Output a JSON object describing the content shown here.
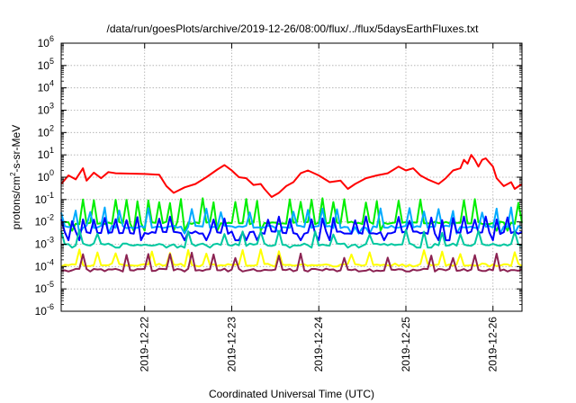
{
  "chart_data": {
    "type": "line",
    "title": "/data/run/goesPlots/archive/2019-12-26/08:00/flux/../flux/5daysEarthFluxes.txt",
    "xlabel": "Coordinated Universal Time (UTC)",
    "ylabel_parts": {
      "pre": "protons/cm",
      "sup": "2",
      "post": "-s-sr-MeV"
    },
    "y_scale": "log",
    "ylim": [
      1e-06,
      1000000.0
    ],
    "y_ticks": [
      {
        "base": "10",
        "exp": "-6"
      },
      {
        "base": "10",
        "exp": "-5"
      },
      {
        "base": "10",
        "exp": "-4"
      },
      {
        "base": "10",
        "exp": "-3"
      },
      {
        "base": "10",
        "exp": "-2"
      },
      {
        "base": "10",
        "exp": "-1"
      },
      {
        "base": "10",
        "exp": "0"
      },
      {
        "base": "10",
        "exp": "1"
      },
      {
        "base": "10",
        "exp": "2"
      },
      {
        "base": "10",
        "exp": "3"
      },
      {
        "base": "10",
        "exp": "4"
      },
      {
        "base": "10",
        "exp": "5"
      },
      {
        "base": "10",
        "exp": "6"
      }
    ],
    "xlim": [
      "2019-12-21T01:00",
      "2019-12-26T08:00"
    ],
    "x_ticks": [
      "2019-12-22",
      "2019-12-23",
      "2019-12-24",
      "2019-12-25",
      "2019-12-26"
    ],
    "grid": true,
    "series": [
      {
        "color": "#ff0000",
        "values": [
          [
            "2019-12-21T01:00",
            0.5
          ],
          [
            "2019-12-21T03:00",
            1.2
          ],
          [
            "2019-12-21T05:00",
            0.8
          ],
          [
            "2019-12-21T07:00",
            2.5
          ],
          [
            "2019-12-21T08:00",
            0.7
          ],
          [
            "2019-12-21T10:00",
            1.6
          ],
          [
            "2019-12-21T12:00",
            0.9
          ],
          [
            "2019-12-21T14:00",
            1.7
          ],
          [
            "2019-12-21T16:00",
            1.5
          ],
          [
            "2019-12-22T00:00",
            1.4
          ],
          [
            "2019-12-22T04:00",
            1.3
          ],
          [
            "2019-12-22T06:00",
            0.4
          ],
          [
            "2019-12-22T08:00",
            0.2
          ],
          [
            "2019-12-22T11:00",
            0.35
          ],
          [
            "2019-12-22T14:00",
            0.5
          ],
          [
            "2019-12-22T17:00",
            1.0
          ],
          [
            "2019-12-22T20:00",
            2.2
          ],
          [
            "2019-12-22T22:00",
            3.5
          ],
          [
            "2019-12-23T00:00",
            2.0
          ],
          [
            "2019-12-23T02:00",
            1.0
          ],
          [
            "2019-12-23T04:00",
            0.9
          ],
          [
            "2019-12-23T06:00",
            0.45
          ],
          [
            "2019-12-23T08:00",
            0.5
          ],
          [
            "2019-12-23T09:00",
            0.3
          ],
          [
            "2019-12-23T11:00",
            0.13
          ],
          [
            "2019-12-23T13:00",
            0.2
          ],
          [
            "2019-12-23T15:00",
            0.4
          ],
          [
            "2019-12-23T17:00",
            0.6
          ],
          [
            "2019-12-23T19:00",
            1.5
          ],
          [
            "2019-12-23T21:00",
            2.0
          ],
          [
            "2019-12-24T00:00",
            1.2
          ],
          [
            "2019-12-24T03:00",
            0.6
          ],
          [
            "2019-12-24T06:00",
            0.7
          ],
          [
            "2019-12-24T08:00",
            0.3
          ],
          [
            "2019-12-24T10:00",
            0.5
          ],
          [
            "2019-12-24T13:00",
            0.9
          ],
          [
            "2019-12-24T16:00",
            1.2
          ],
          [
            "2019-12-24T19:00",
            1.5
          ],
          [
            "2019-12-24T22:00",
            3.0
          ],
          [
            "2019-12-25T00:00",
            2.0
          ],
          [
            "2019-12-25T02:00",
            2.5
          ],
          [
            "2019-12-25T04:00",
            1.2
          ],
          [
            "2019-12-25T06:00",
            0.8
          ],
          [
            "2019-12-25T09:00",
            0.5
          ],
          [
            "2019-12-25T11:00",
            0.9
          ],
          [
            "2019-12-25T13:00",
            2.0
          ],
          [
            "2019-12-25T15:00",
            2.5
          ],
          [
            "2019-12-25T16:00",
            6.0
          ],
          [
            "2019-12-25T17:00",
            4.0
          ],
          [
            "2019-12-25T18:00",
            10.0
          ],
          [
            "2019-12-25T19:00",
            6.0
          ],
          [
            "2019-12-25T20:00",
            3.0
          ],
          [
            "2019-12-25T21:00",
            6.0
          ],
          [
            "2019-12-25T22:00",
            7.0
          ],
          [
            "2019-12-26T00:00",
            3.0
          ],
          [
            "2019-12-26T01:00",
            0.9
          ],
          [
            "2019-12-26T02:00",
            0.6
          ],
          [
            "2019-12-26T03:00",
            0.4
          ],
          [
            "2019-12-26T05:00",
            0.6
          ],
          [
            "2019-12-26T06:00",
            0.3
          ],
          [
            "2019-12-26T08:00",
            0.5
          ]
        ]
      },
      {
        "color": "#00ee00",
        "base": 0.009,
        "spike": 0.08,
        "every": 3,
        "dip": 0.004
      },
      {
        "color": "#00aaff",
        "base": 0.006,
        "spike": 0.03,
        "every": 4,
        "dip": 0.003
      },
      {
        "color": "#0000ff",
        "base": 0.0033,
        "spike": 0.012,
        "every": 3,
        "dip": 0.0015
      },
      {
        "color": "#00c8a0",
        "base": 0.00095,
        "spike": 0.003,
        "every": 5,
        "dip": 0.0007
      },
      {
        "color": "#ffff00",
        "base": 0.00012,
        "spike": 0.0004,
        "every": 5,
        "dip": 0.0001
      },
      {
        "color": "#8b2252",
        "base": 7e-05,
        "spike": 0.00028,
        "every": 6,
        "dip": 6e-05
      }
    ]
  }
}
